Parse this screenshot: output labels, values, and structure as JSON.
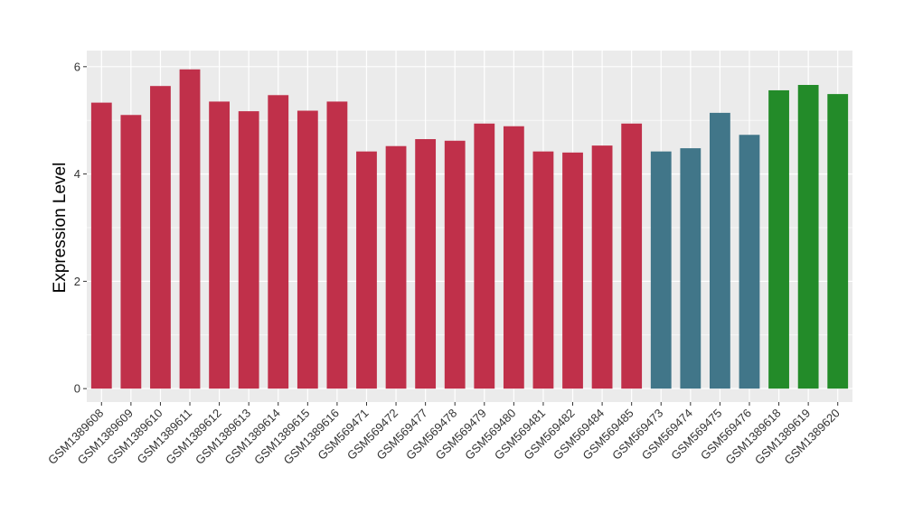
{
  "chart_data": {
    "type": "bar",
    "title": "",
    "xlabel": "",
    "ylabel": "Expression Level",
    "ylim": [
      -0.25,
      6.3
    ],
    "yticks": [
      0,
      2,
      4,
      6
    ],
    "grid": true,
    "legend": "none",
    "background": "#ebebeb",
    "grid_color": "#ffffff",
    "categories": [
      "GSM1389608",
      "GSM1389609",
      "GSM1389610",
      "GSM1389611",
      "GSM1389612",
      "GSM1389613",
      "GSM1389614",
      "GSM1389615",
      "GSM1389616",
      "GSM569471",
      "GSM569472",
      "GSM569477",
      "GSM569478",
      "GSM569479",
      "GSM569480",
      "GSM569481",
      "GSM569482",
      "GSM569484",
      "GSM569485",
      "GSM569473",
      "GSM569474",
      "GSM569475",
      "GSM569476",
      "GSM1389618",
      "GSM1389619",
      "GSM1389620"
    ],
    "values": [
      5.33,
      5.1,
      5.64,
      5.95,
      5.35,
      5.17,
      5.47,
      5.18,
      5.35,
      4.42,
      4.52,
      4.65,
      4.62,
      4.94,
      4.89,
      4.42,
      4.4,
      4.53,
      4.94,
      4.42,
      4.48,
      5.14,
      4.73,
      5.56,
      5.66,
      5.49
    ],
    "colors": [
      "#c0304a",
      "#c0304a",
      "#c0304a",
      "#c0304a",
      "#c0304a",
      "#c0304a",
      "#c0304a",
      "#c0304a",
      "#c0304a",
      "#c0304a",
      "#c0304a",
      "#c0304a",
      "#c0304a",
      "#c0304a",
      "#c0304a",
      "#c0304a",
      "#c0304a",
      "#c0304a",
      "#c0304a",
      "#417689",
      "#417689",
      "#417689",
      "#417689",
      "#238b29",
      "#238b29",
      "#238b29"
    ]
  }
}
